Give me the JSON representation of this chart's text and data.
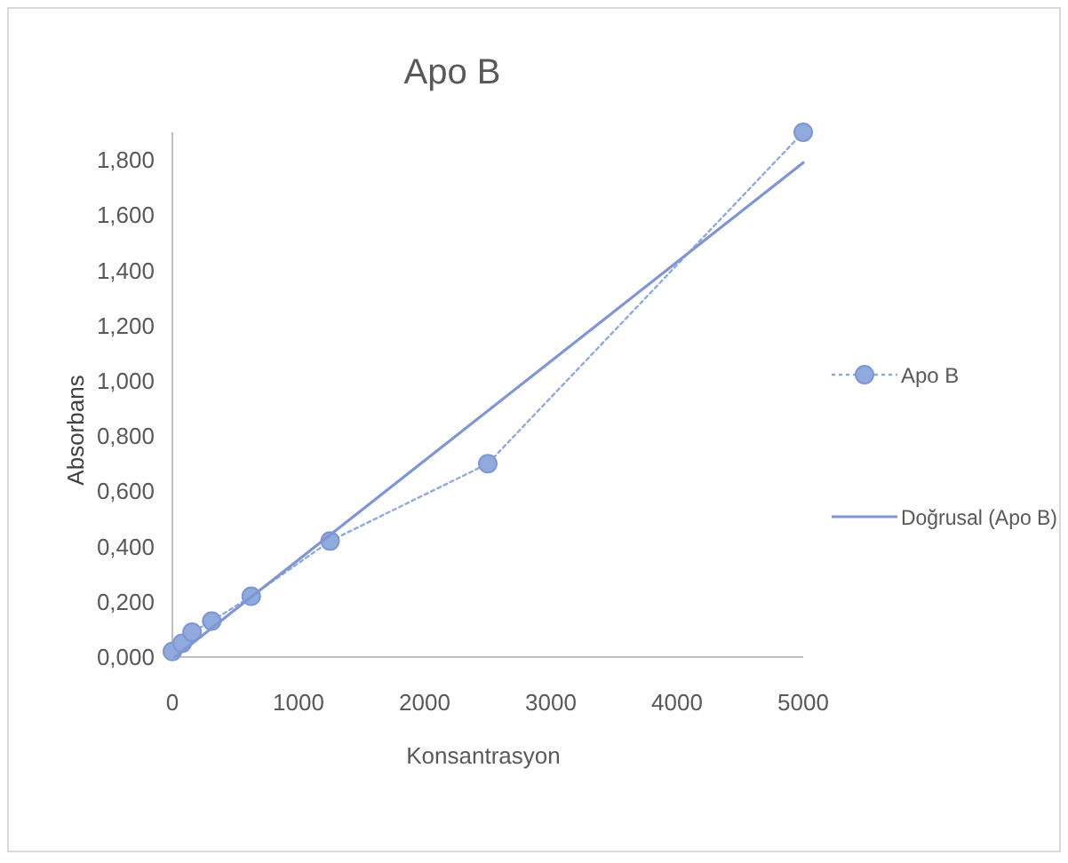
{
  "chart_data": {
    "type": "line",
    "title": "Apo B",
    "xlabel": "Konsantrasyon",
    "ylabel": "Absorbans",
    "xlim": [
      0,
      5000
    ],
    "xticks": [
      0,
      1000,
      2000,
      3000,
      4000,
      5000
    ],
    "ylim": [
      0,
      1.9
    ],
    "yticks": [
      {
        "value": 0,
        "label": "0,000"
      },
      {
        "value": 0.2,
        "label": "0,200"
      },
      {
        "value": 0.4,
        "label": "0,400"
      },
      {
        "value": 0.6,
        "label": "0,600"
      },
      {
        "value": 0.8,
        "label": "0,800"
      },
      {
        "value": 1.0,
        "label": "1,000"
      },
      {
        "value": 1.2,
        "label": "1,200"
      },
      {
        "value": 1.4,
        "label": "1,400"
      },
      {
        "value": 1.6,
        "label": "1,600"
      },
      {
        "value": 1.8,
        "label": "1,800"
      }
    ],
    "grid": false,
    "legend": "right",
    "series": [
      {
        "name": "Apo B",
        "color": "#8faadc",
        "x": [
          0,
          78,
          156,
          312,
          625,
          1250,
          2500,
          5000
        ],
        "values": [
          0.02,
          0.05,
          0.09,
          0.13,
          0.22,
          0.42,
          0.7,
          1.9
        ],
        "marker": "circle",
        "line_style": "dotted"
      },
      {
        "name": "Doğrusal (Apo B)",
        "type": "line",
        "color": "#7f96d6",
        "x": [
          20,
          5000
        ],
        "values": [
          0,
          1.79
        ],
        "marker": "none",
        "line_style": "solid"
      }
    ]
  }
}
